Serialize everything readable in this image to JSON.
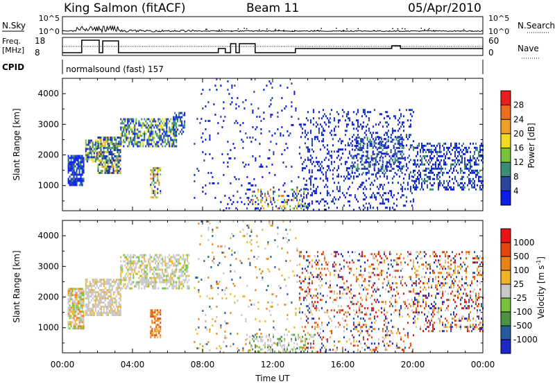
{
  "header": {
    "station": "King Salmon (fitACF)",
    "beam": "Beam 11",
    "date": "05/Apr/2010"
  },
  "strip_labels": {
    "nsky": "N.Sky",
    "nsky_ticks": [
      "10^5",
      "10^0"
    ],
    "freq": "Freq.",
    "freq_unit": "[MHz]",
    "freq_ticks": [
      "18",
      "8"
    ],
    "cpid": "CPID",
    "cpid_value": "normalsound (fast) 157",
    "nsearch": "N.Search",
    "nsearch_ticks": [
      "10^5",
      "10^0"
    ],
    "nave": "Nave",
    "nave_ticks": [
      "60",
      "0"
    ]
  },
  "axes": {
    "ylabel": "Slant Range [km]",
    "xlabel": "Time UT",
    "y_ticks": [
      "1000",
      "2000",
      "3000",
      "4000"
    ],
    "x_ticks": [
      "00:00",
      "04:00",
      "08:00",
      "12:00",
      "16:00",
      "20:00",
      "00:00"
    ]
  },
  "colorbars": {
    "power": {
      "label": "Power [dB]",
      "ticks": [
        "4",
        "8",
        "12",
        "16",
        "20",
        "24",
        "28"
      ],
      "colors": [
        "#0a1ee6",
        "#28469b",
        "#3c8c78",
        "#78c33c",
        "#f0dc1e",
        "#f0a028",
        "#eb6e1e",
        "#e61e1e"
      ]
    },
    "velocity": {
      "label": "Velocity [m s",
      "label_sup": "-1",
      "label_end": "]",
      "ticks": [
        "1000",
        "500",
        "100",
        "25",
        "-25",
        "-100",
        "-500",
        "-1000"
      ],
      "colors": [
        "#1e28c8",
        "#285aa0",
        "#4b9146",
        "#78c33c",
        "#c8c8c8",
        "#f0b428",
        "#eb8219",
        "#e6460f",
        "#e61414"
      ]
    }
  },
  "chart_data": [
    {
      "type": "heatmap",
      "panel": "power",
      "x_unit": "hours UT",
      "xlim": [
        0,
        24
      ],
      "ylim": [
        180,
        4500
      ],
      "blobs": [
        {
          "x": [
            0.3,
            1.2
          ],
          "y": [
            1000,
            2000
          ],
          "palette": "power",
          "mix": [
            0,
            0,
            0,
            1,
            1,
            2
          ],
          "density": 0.8
        },
        {
          "x": [
            1.3,
            2.0
          ],
          "y": [
            1800,
            2500
          ],
          "palette": "power",
          "mix": [
            0,
            1,
            2,
            3,
            4
          ],
          "density": 0.7
        },
        {
          "x": [
            2.0,
            3.3
          ],
          "y": [
            1400,
            2600
          ],
          "palette": "power",
          "mix": [
            0,
            1,
            1,
            2,
            3,
            4,
            5
          ],
          "density": 0.75
        },
        {
          "x": [
            3.3,
            6.5
          ],
          "y": [
            2300,
            3200
          ],
          "palette": "power",
          "mix": [
            0,
            1,
            1,
            2,
            2,
            3,
            4
          ],
          "density": 0.6
        },
        {
          "x": [
            5.0,
            5.6
          ],
          "y": [
            600,
            1600
          ],
          "palette": "power",
          "mix": [
            0,
            1,
            2,
            3,
            4,
            5,
            6
          ],
          "density": 0.5
        },
        {
          "x": [
            6.3,
            7.0
          ],
          "y": [
            2700,
            3400
          ],
          "palette": "power",
          "mix": [
            0,
            1,
            2
          ],
          "density": 0.5
        },
        {
          "x": [
            7.5,
            13.5
          ],
          "y": [
            180,
            4500
          ],
          "palette": "power",
          "mix": [
            0,
            0,
            0,
            1
          ],
          "density": 0.05
        },
        {
          "x": [
            10.5,
            14.0
          ],
          "y": [
            250,
            900
          ],
          "palette": "power",
          "mix": [
            0,
            1,
            2,
            3,
            4,
            5,
            6
          ],
          "density": 0.25
        },
        {
          "x": [
            13.5,
            20.0
          ],
          "y": [
            180,
            3500
          ],
          "palette": "power",
          "mix": [
            0,
            0,
            0,
            1
          ],
          "density": 0.18
        },
        {
          "x": [
            16.5,
            19.5
          ],
          "y": [
            1400,
            2600
          ],
          "palette": "power",
          "mix": [
            0,
            1,
            1,
            2
          ],
          "density": 0.35
        },
        {
          "x": [
            20.0,
            24.0
          ],
          "y": [
            900,
            2400
          ],
          "palette": "power",
          "mix": [
            0,
            0,
            1,
            2
          ],
          "density": 0.4
        }
      ]
    },
    {
      "type": "heatmap",
      "panel": "velocity",
      "x_unit": "hours UT",
      "xlim": [
        0,
        24
      ],
      "ylim": [
        180,
        4500
      ],
      "blobs": [
        {
          "x": [
            0.3,
            1.2
          ],
          "y": [
            1000,
            2300
          ],
          "palette": "velocity",
          "mix": [
            4,
            4,
            3,
            5,
            6
          ],
          "density": 0.8
        },
        {
          "x": [
            1.3,
            3.3
          ],
          "y": [
            1400,
            2600
          ],
          "palette": "velocity",
          "mix": [
            4,
            4,
            4,
            5
          ],
          "density": 0.7
        },
        {
          "x": [
            3.3,
            7.2
          ],
          "y": [
            2300,
            3400
          ],
          "palette": "velocity",
          "mix": [
            4,
            4,
            4,
            3,
            5
          ],
          "density": 0.55
        },
        {
          "x": [
            5.0,
            5.6
          ],
          "y": [
            700,
            1600
          ],
          "palette": "velocity",
          "mix": [
            5,
            6,
            7
          ],
          "density": 0.7
        },
        {
          "x": [
            7.5,
            13.5
          ],
          "y": [
            180,
            4500
          ],
          "palette": "velocity",
          "mix": [
            4,
            5,
            6,
            1
          ],
          "density": 0.05
        },
        {
          "x": [
            10.5,
            14.5
          ],
          "y": [
            250,
            800
          ],
          "palette": "velocity",
          "mix": [
            2,
            3,
            4,
            4
          ],
          "density": 0.3
        },
        {
          "x": [
            13.5,
            20.0
          ],
          "y": [
            180,
            3500
          ],
          "palette": "velocity",
          "mix": [
            0,
            1,
            4,
            5,
            6,
            7,
            8
          ],
          "density": 0.18
        },
        {
          "x": [
            20.0,
            24.0
          ],
          "y": [
            900,
            3500
          ],
          "palette": "velocity",
          "mix": [
            0,
            1,
            4,
            5,
            6,
            7,
            8
          ],
          "density": 0.25
        }
      ]
    }
  ]
}
